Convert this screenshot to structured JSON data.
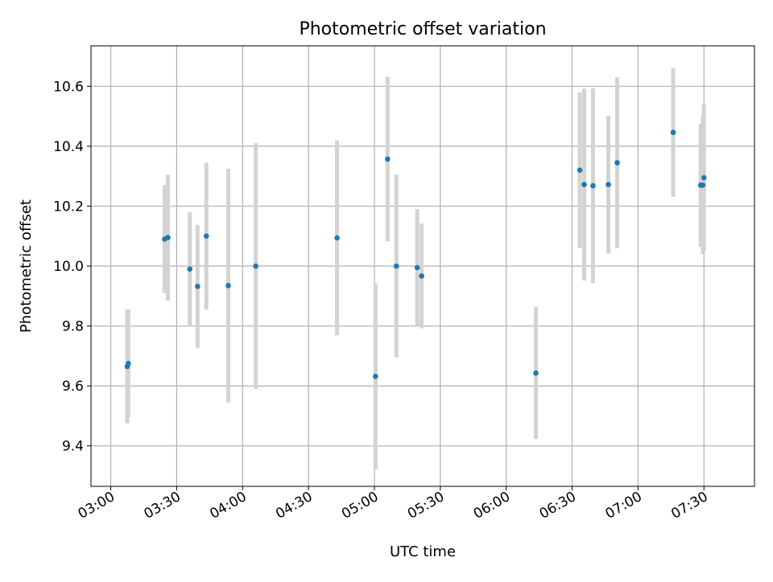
{
  "chart_data": {
    "type": "scatter",
    "title": "Photometric offset variation",
    "xlabel": "UTC time",
    "ylabel": "Photometric offset",
    "x_axis_type": "time",
    "xlim": [
      "02:51",
      "07:53"
    ],
    "ylim": [
      9.265,
      10.735
    ],
    "x_ticks": [
      "03:00",
      "03:30",
      "04:00",
      "04:30",
      "05:00",
      "05:30",
      "06:00",
      "06:30",
      "07:00",
      "07:30"
    ],
    "y_ticks": [
      "9.4",
      "9.6",
      "9.8",
      "10.0",
      "10.2",
      "10.4",
      "10.6"
    ],
    "grid": true,
    "marker_color": "#1f77b4",
    "errorbar_color": "#d3d3d3",
    "points": [
      {
        "x": "03:07:30",
        "y": 9.665,
        "err": 0.19
      },
      {
        "x": "03:08:00",
        "y": 9.675,
        "err": 0.18
      },
      {
        "x": "03:24:30",
        "y": 10.09,
        "err": 0.18
      },
      {
        "x": "03:26:00",
        "y": 10.095,
        "err": 0.21
      },
      {
        "x": "03:36:00",
        "y": 9.99,
        "err": 0.19
      },
      {
        "x": "03:39:30",
        "y": 9.932,
        "err": 0.205
      },
      {
        "x": "03:43:30",
        "y": 10.1,
        "err": 0.245
      },
      {
        "x": "03:53:30",
        "y": 9.935,
        "err": 0.39
      },
      {
        "x": "04:06:00",
        "y": 10.0,
        "err": 0.41
      },
      {
        "x": "04:43:00",
        "y": 10.094,
        "err": 0.325
      },
      {
        "x": "05:00:30",
        "y": 9.632,
        "err": 0.31
      },
      {
        "x": "05:06:00",
        "y": 10.357,
        "err": 0.275
      },
      {
        "x": "05:10:00",
        "y": 10.0,
        "err": 0.305
      },
      {
        "x": "05:19:30",
        "y": 9.995,
        "err": 0.195
      },
      {
        "x": "05:21:30",
        "y": 9.967,
        "err": 0.175
      },
      {
        "x": "06:13:30",
        "y": 9.643,
        "err": 0.22
      },
      {
        "x": "06:33:30",
        "y": 10.32,
        "err": 0.26
      },
      {
        "x": "06:35:30",
        "y": 10.272,
        "err": 0.32
      },
      {
        "x": "06:39:30",
        "y": 10.268,
        "err": 0.325
      },
      {
        "x": "06:46:30",
        "y": 10.272,
        "err": 0.23
      },
      {
        "x": "06:50:30",
        "y": 10.345,
        "err": 0.285
      },
      {
        "x": "07:16:00",
        "y": 10.446,
        "err": 0.215
      },
      {
        "x": "07:28:30",
        "y": 10.27,
        "err": 0.205
      },
      {
        "x": "07:29:30",
        "y": 10.27,
        "err": 0.23
      },
      {
        "x": "07:30:00",
        "y": 10.295,
        "err": 0.245
      }
    ]
  }
}
